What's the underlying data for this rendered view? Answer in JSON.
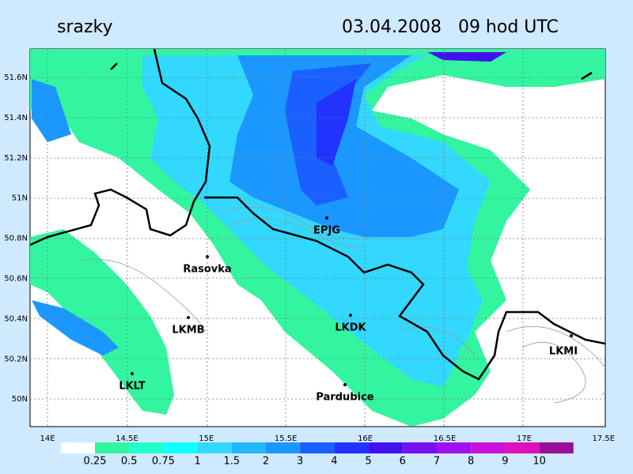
{
  "header": {
    "title": "srazky",
    "datetime": "03.04.2008   09 hod UTC"
  },
  "map": {
    "lat_labels": [
      "51.6N",
      "51.4N",
      "51.2N",
      "51N",
      "50.8N",
      "50.6N",
      "50.4N",
      "50.2N",
      "50N"
    ],
    "lon_labels": [
      "14E",
      "14.5E",
      "15E",
      "15.5E",
      "16E",
      "16.5E",
      "17E",
      "17.5E"
    ],
    "stations": [
      {
        "label": "EPJG"
      },
      {
        "label": "Rasovka"
      },
      {
        "label": "LKMB"
      },
      {
        "label": "LKDK"
      },
      {
        "label": "LKMI"
      },
      {
        "label": "LKLT"
      },
      {
        "label": "Pardubice"
      }
    ]
  },
  "legend": {
    "labels": [
      0.25,
      0.5,
      0.75,
      1,
      1.5,
      2,
      3,
      4,
      5,
      6,
      7,
      8,
      9,
      10
    ],
    "colors": [
      "#ffffff",
      "#33f5a0",
      "#22ffcc",
      "#11ffff",
      "#33d8ff",
      "#22b8ff",
      "#1a98ff",
      "#1a60ff",
      "#2233ff",
      "#4411ee",
      "#7711ee",
      "#a011ee",
      "#cc11dd",
      "#dd11bb",
      "#991199"
    ]
  }
}
